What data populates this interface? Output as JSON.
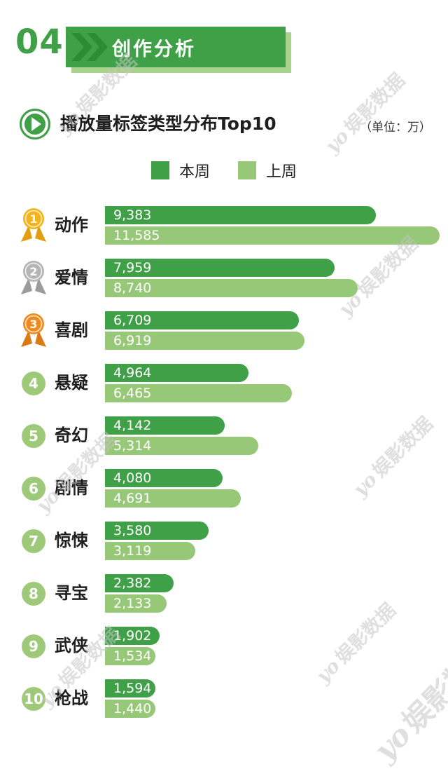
{
  "header": {
    "section_number": "04",
    "section_title": "创作分析"
  },
  "chart_header": {
    "title": "播放量标签类型分布Top10",
    "unit_label": "（单位：万）"
  },
  "legend": [
    {
      "label": "本周",
      "color": "#3fa047"
    },
    {
      "label": "上周",
      "color": "#97c878"
    }
  ],
  "watermark": {
    "logo": "yo",
    "text": "娱影数据"
  },
  "colors": {
    "dark_green": "#3fa047",
    "light_green": "#97c878",
    "banner_shadow": "#a9d38c",
    "chevron": "#2e8b34",
    "rank_circle": "#9ec979",
    "gold": "#f5b31b",
    "gold_ribbon": "#e39d0e",
    "silver": "#b5b5b5",
    "silver_ribbon": "#9c9c9c",
    "bronze": "#f08a1d",
    "bronze_ribbon": "#d97a14"
  },
  "chart_data": {
    "type": "bar",
    "orientation": "horizontal",
    "title": "播放量标签类型分布Top10",
    "unit": "万",
    "xlim": [
      0,
      11585
    ],
    "grid": false,
    "legend_position": "top-center",
    "categories": [
      "动作",
      "爱情",
      "喜剧",
      "悬疑",
      "奇幻",
      "剧情",
      "惊悚",
      "寻宝",
      "武侠",
      "枪战"
    ],
    "ranks": [
      1,
      2,
      3,
      4,
      5,
      6,
      7,
      8,
      9,
      10
    ],
    "series": [
      {
        "name": "本周",
        "color": "#3fa047",
        "values": [
          9383,
          7959,
          6709,
          4964,
          4142,
          4080,
          3580,
          2382,
          1902,
          1594
        ],
        "labels": [
          "9,383",
          "7,959",
          "6,709",
          "4,964",
          "4,142",
          "4,080",
          "3,580",
          "2,382",
          "1,902",
          "1,594"
        ]
      },
      {
        "name": "上周",
        "color": "#97c878",
        "values": [
          11585,
          8740,
          6919,
          6465,
          5314,
          4691,
          3119,
          2133,
          1534,
          1440
        ],
        "labels": [
          "11,585",
          "8,740",
          "6,919",
          "6,465",
          "5,314",
          "4,691",
          "3,119",
          "2,133",
          "1,534",
          "1,440"
        ]
      }
    ]
  }
}
